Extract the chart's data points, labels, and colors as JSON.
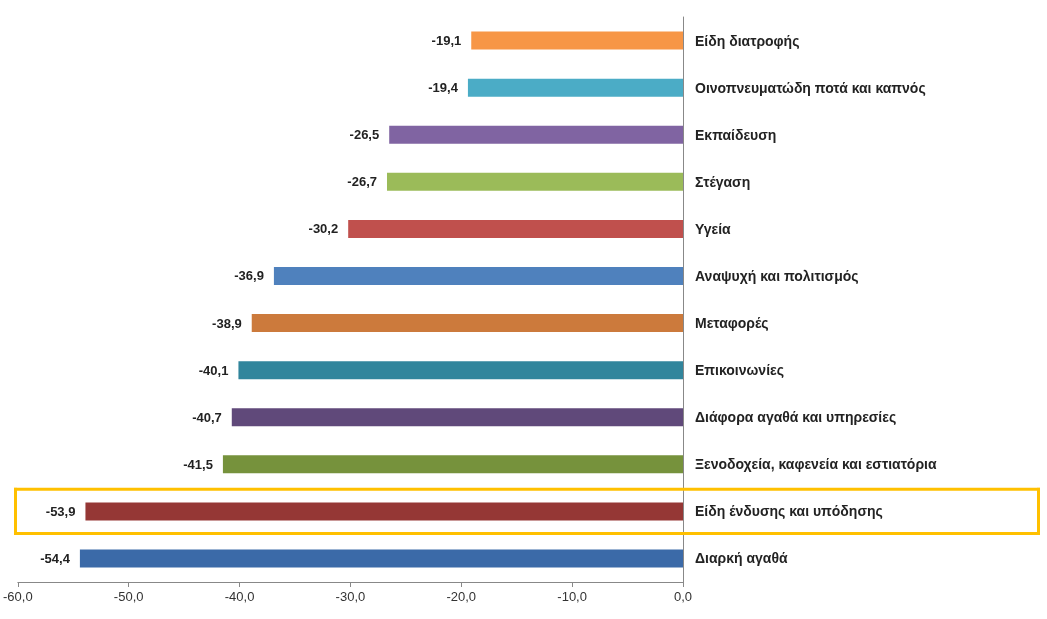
{
  "chart_data": {
    "type": "bar",
    "orientation": "horizontal",
    "categories": [
      "Είδη διατροφής",
      "Οινοπνευματώδη ποτά και καπνός",
      "Εκπαίδευση",
      "Στέγαση",
      "Υγεία",
      "Αναψυχή και πολιτισμός",
      "Μεταφορές",
      "Επικοινωνίες",
      "Διάφορα αγαθά και υπηρεσίες",
      "Ξενοδοχεία, καφενεία και εστιατόρια",
      "Είδη ένδυσης και υπόδησης",
      "Διαρκή αγαθά"
    ],
    "values": [
      -19.1,
      -19.4,
      -26.5,
      -26.7,
      -30.2,
      -36.9,
      -38.9,
      -40.1,
      -40.7,
      -41.5,
      -53.9,
      -54.4
    ],
    "value_labels": [
      "-19,1",
      "-19,4",
      "-26,5",
      "-26,7",
      "-30,2",
      "-36,9",
      "-38,9",
      "-40,1",
      "-40,7",
      "-41,5",
      "-53,9",
      "-54,4"
    ],
    "colors": [
      "#f79646",
      "#4bacc6",
      "#8064a2",
      "#9bbb59",
      "#c0504d",
      "#4f81bd",
      "#cc7a3c",
      "#31859c",
      "#60497a",
      "#76923c",
      "#953735",
      "#3b6aa8"
    ],
    "xlim": [
      -60,
      0
    ],
    "xticks": [
      {
        "value": -60,
        "label": "-60,0"
      },
      {
        "value": -50,
        "label": "-50,0"
      },
      {
        "value": -40,
        "label": "-40,0"
      },
      {
        "value": -30,
        "label": "-30,0"
      },
      {
        "value": -20,
        "label": "-20,0"
      },
      {
        "value": -10,
        "label": "-10,0"
      },
      {
        "value": 0,
        "label": "0,0"
      }
    ],
    "grid": false
  }
}
